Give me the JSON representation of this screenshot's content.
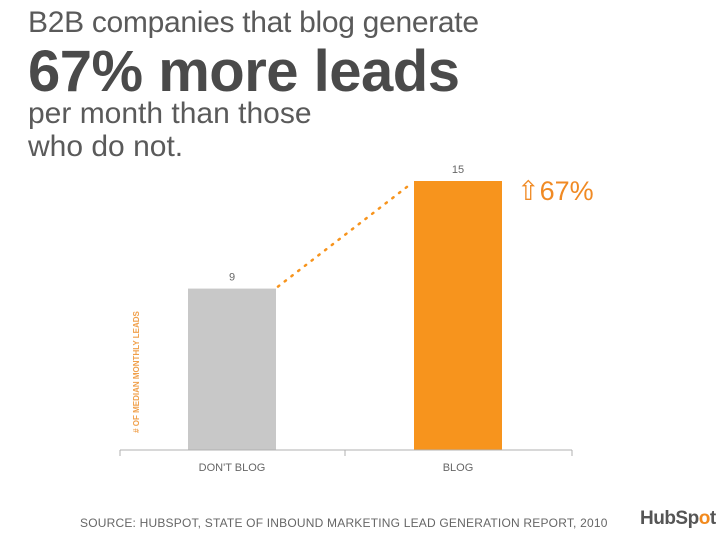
{
  "headline": {
    "line1": "B2B companies that blog generate",
    "line2": "67% more leads",
    "line3": "per month than those",
    "line4": "who do not."
  },
  "callout": {
    "arrow_icon": "up-arrow-icon",
    "text": "67%"
  },
  "source": "SOURCE: HUBSPOT, STATE OF INBOUND MARKETING LEAD GENERATION REPORT, 2010",
  "logo": {
    "text_before": "HubSp",
    "text_o": "o",
    "text_after": "t"
  },
  "colors": {
    "accent": "#f7941d",
    "gray_bar": "#c8c8c8",
    "axis": "#b0b0b0",
    "text": "#555555"
  },
  "chart_data": {
    "type": "bar",
    "categories": [
      "DON'T BLOG",
      "BLOG"
    ],
    "values": [
      9,
      15
    ],
    "data_labels": [
      "9",
      "15"
    ],
    "bar_colors": [
      "#c8c8c8",
      "#f7941d"
    ],
    "ylabel": "# OF MEDIAN MONTHLY LEADS",
    "ylim": [
      0,
      16
    ],
    "grid": false,
    "connector": "dotted"
  }
}
